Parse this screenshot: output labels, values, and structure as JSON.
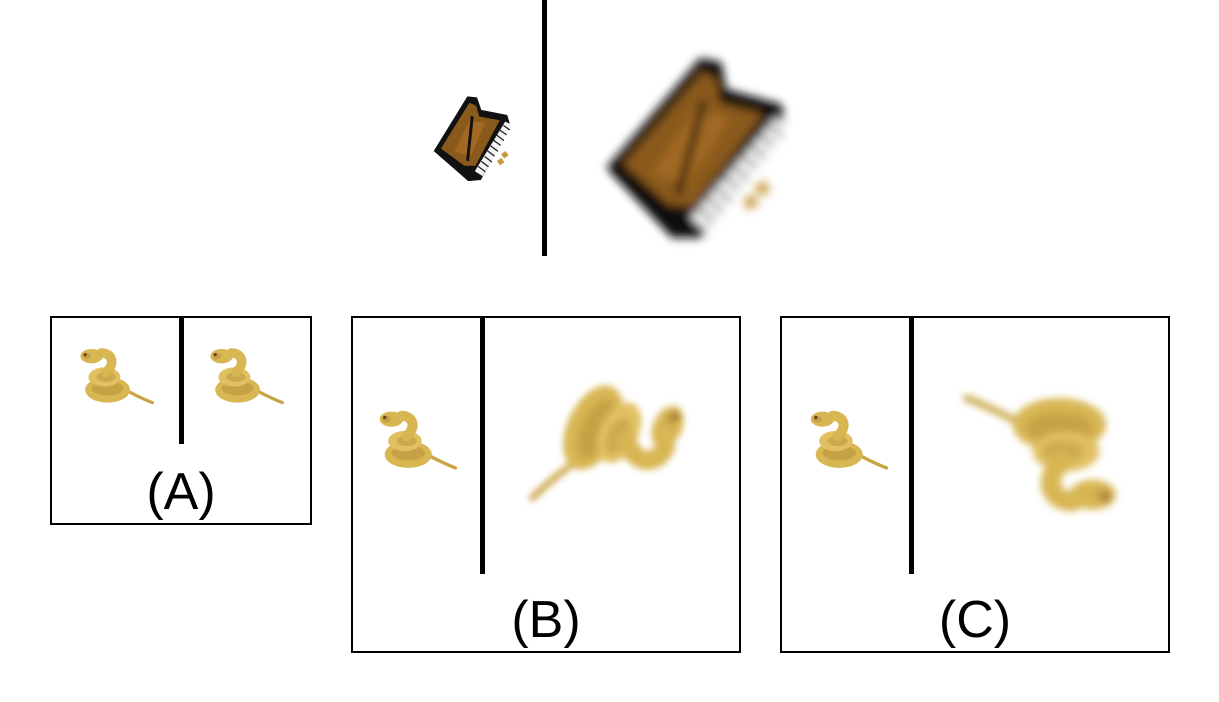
{
  "prompt": {
    "left_object": "piano-icon",
    "right_object": "piano-icon",
    "left_state": "small",
    "right_state": "large-blurred"
  },
  "options": [
    {
      "label": "(A)",
      "left_object": "snake-icon",
      "right_object": "snake-icon",
      "right_state": "same-size"
    },
    {
      "label": "(B)",
      "left_object": "snake-icon",
      "right_object": "snake-icon",
      "right_state": "large-blurred-rotated"
    },
    {
      "label": "(C)",
      "left_object": "snake-icon",
      "right_object": "snake-icon",
      "right_state": "large-blurred-rotated"
    }
  ],
  "colors": {
    "line": "#000000",
    "piano_body": "#111111",
    "piano_wood": "#8a5a1a",
    "snake_body": "#d8b652",
    "snake_shade": "#b8923a"
  }
}
